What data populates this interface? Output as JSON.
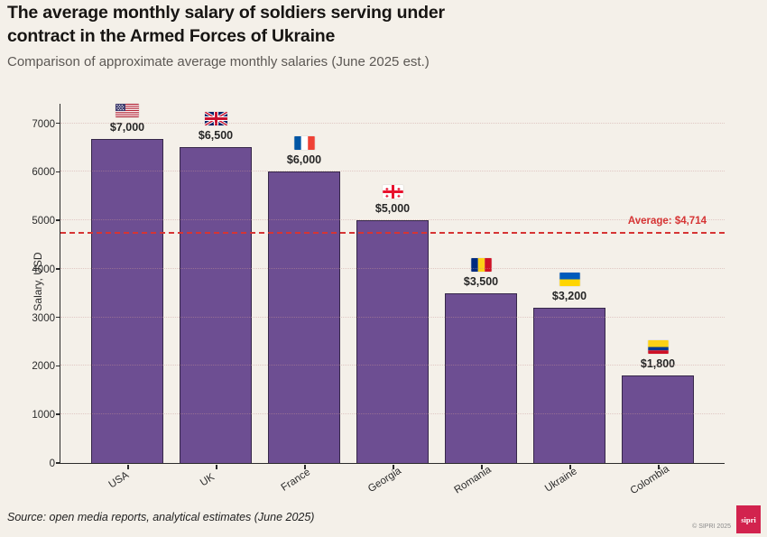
{
  "header": {
    "title": "The average monthly salary of soldiers serving under\ncontract in the Armed Forces of Ukraine",
    "subtitle": "Comparison of approximate average monthly salaries (June 2025 est.)"
  },
  "chart_data": {
    "type": "bar",
    "title": "The average monthly salary of soldiers serving under contract in the Armed Forces of Ukraine",
    "subtitle": "Comparison of approximate average monthly salaries (June 2025 est.)",
    "categories": [
      "USA",
      "UK",
      "France",
      "Georgia",
      "Romania",
      "Ukraine",
      "Colombia"
    ],
    "values": [
      7000,
      6500,
      6000,
      5000,
      3500,
      3200,
      1800
    ],
    "value_labels": [
      "$7,000",
      "$6,500",
      "$6,000",
      "$5,000",
      "$3,500",
      "$3,200",
      "$1,800"
    ],
    "flags": [
      "usa-flag",
      "uk-flag",
      "france-flag",
      "georgia-flag",
      "romania-flag",
      "ukraine-flag",
      "colombia-flag"
    ],
    "xlabel": "",
    "ylabel": "Salary, USD",
    "ylim": [
      0,
      7400
    ],
    "yticks": [
      0,
      1000,
      2000,
      3000,
      4000,
      5000,
      6000,
      7000
    ],
    "average": {
      "value": 4714,
      "label": "Average: $4,714"
    },
    "grid": "horizontal-dotted",
    "legend": "none",
    "bar_color": "#6d4e92",
    "bar_border_color": "#362749",
    "average_line_color": "#d63434"
  },
  "footer": {
    "source": "Source: open media reports, analytical estimates (June 2025)",
    "copyright": "© SIPRI 2025",
    "logo_text": "sipri",
    "logo_color": "#d2234e"
  },
  "colors": {
    "background": "#f4f0e9",
    "title": "#171513",
    "subtitle": "#5c5854",
    "axis": "#2b2b2b"
  }
}
